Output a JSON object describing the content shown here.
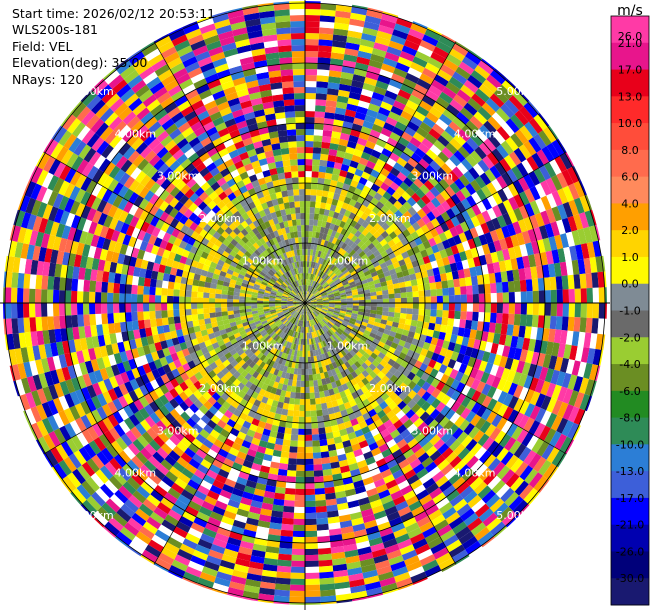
{
  "info": {
    "start_time": "Start time: 2026/02/12 20:53:11",
    "instrument": "WLS200s-181",
    "field": "Field: VEL",
    "elevation": "Elevation(deg): 35.00",
    "nrays": "NRays: 120"
  },
  "colorbar": {
    "unit": "m/s",
    "ticks": [
      "26.0",
      "21.0",
      "17.0",
      "13.0",
      "10.0",
      "8.0",
      "6.0",
      "4.0",
      "2.0",
      "1.0",
      "0.0",
      "-1.0",
      "-2.0",
      "-4.0",
      "-6.0",
      "-8.0",
      "-10.0",
      "-13.0",
      "-17.0",
      "-21.0",
      "-26.0",
      "-30.0"
    ],
    "colors": [
      "#ff3aa6",
      "#e8158c",
      "#e8001a",
      "#ff2a2a",
      "#ff4d3a",
      "#ff6b4d",
      "#ff8a5c",
      "#ff9f00",
      "#ffd400",
      "#fffa00",
      "#7f8b95",
      "#6a6a6a",
      "#9acd32",
      "#6b8e23",
      "#228b22",
      "#2e8b57",
      "#2c7ed6",
      "#3d5fd9",
      "#0000ff",
      "#0000b0",
      "#00007a",
      "#191970"
    ]
  },
  "chart_data": {
    "type": "ppi",
    "nrays": 120,
    "range_rings_km": [
      1.0,
      2.0,
      3.0,
      4.0,
      5.0
    ],
    "ring_labels": [
      "1.00km",
      "2.00km",
      "3.00km",
      "4.00km",
      "5.00km"
    ]
  }
}
